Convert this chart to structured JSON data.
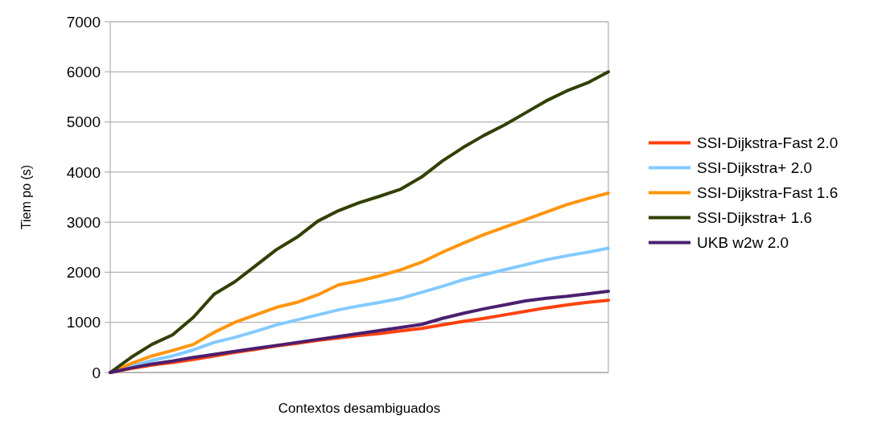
{
  "chart_data": {
    "type": "line",
    "xlabel": "Contextos desambiguados",
    "ylabel": "Tiem po (s)",
    "categories": [
      null,
      null,
      null,
      null,
      null,
      null,
      null,
      null,
      null,
      null,
      null,
      null,
      null,
      null,
      null,
      null,
      null,
      null,
      null,
      null,
      null,
      null,
      null,
      null,
      null
    ],
    "ylim": [
      0,
      7000
    ],
    "yticks": [
      0,
      1000,
      2000,
      3000,
      4000,
      5000,
      6000,
      7000
    ],
    "grid": "y",
    "legend": "right",
    "line_style": "solid",
    "series": [
      {
        "name": "SSI-Dijkstra-Fast 2.0",
        "color": "#ff420e",
        "values": [
          0,
          80,
          150,
          200,
          260,
          330,
          400,
          460,
          530,
          580,
          640,
          690,
          740,
          780,
          830,
          880,
          950,
          1020,
          1080,
          1150,
          1220,
          1290,
          1350,
          1400,
          1440
        ]
      },
      {
        "name": "SSI-Dijkstra+ 2.0",
        "color": "#83caff",
        "values": [
          0,
          120,
          240,
          330,
          450,
          600,
          700,
          820,
          950,
          1050,
          1150,
          1250,
          1330,
          1400,
          1480,
          1600,
          1720,
          1850,
          1950,
          2050,
          2150,
          2250,
          2330,
          2400,
          2480
        ]
      },
      {
        "name": "SSI-Dijkstra-Fast 1.6",
        "color": "#ff950e",
        "values": [
          0,
          180,
          330,
          440,
          560,
          800,
          1000,
          1150,
          1300,
          1400,
          1550,
          1750,
          1830,
          1930,
          2050,
          2200,
          2400,
          2580,
          2750,
          2900,
          3050,
          3200,
          3350,
          3470,
          3580
        ]
      },
      {
        "name": "SSI-Dijkstra+ 1.6",
        "color": "#314004",
        "values": [
          0,
          300,
          560,
          750,
          1100,
          1560,
          1810,
          2130,
          2450,
          2700,
          3020,
          3230,
          3390,
          3520,
          3660,
          3900,
          4220,
          4490,
          4730,
          4940,
          5180,
          5420,
          5620,
          5780,
          6000
        ]
      },
      {
        "name": "UKB w2w 2.0",
        "color": "#4b1f6f",
        "values": [
          0,
          90,
          170,
          230,
          300,
          360,
          420,
          480,
          540,
          600,
          660,
          720,
          780,
          840,
          900,
          960,
          1080,
          1180,
          1270,
          1350,
          1430,
          1480,
          1520,
          1570,
          1620
        ]
      }
    ]
  }
}
